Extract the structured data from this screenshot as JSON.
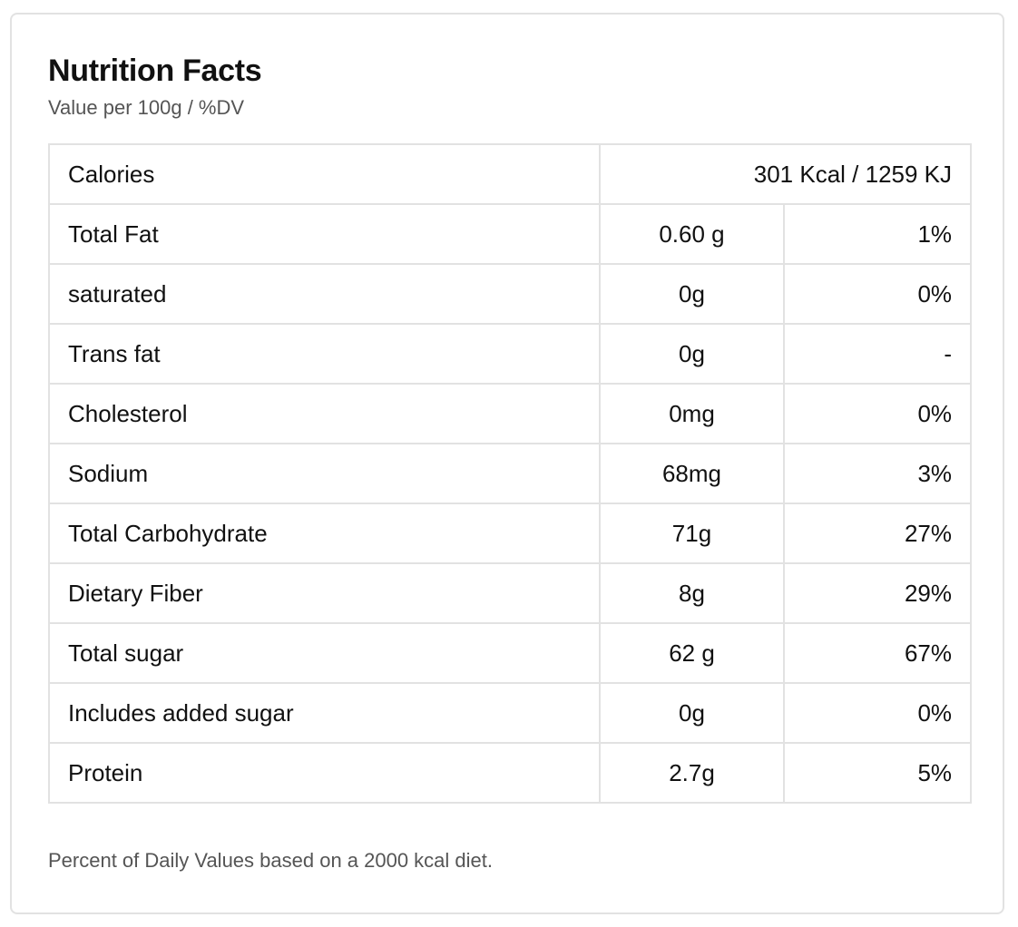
{
  "panel": {
    "title": "Nutrition Facts",
    "subtitle": "Value per 100g / %DV",
    "footnote": "Percent of Daily Values based on a 2000 kcal diet."
  },
  "calories": {
    "label": "Calories",
    "value": "301 Kcal / 1259 KJ"
  },
  "nutrients": [
    {
      "name": "Total Fat",
      "amount": "0.60 g",
      "dv": "1%"
    },
    {
      "name": "saturated",
      "amount": "0g",
      "dv": "0%"
    },
    {
      "name": "Trans fat",
      "amount": "0g",
      "dv": "-"
    },
    {
      "name": "Cholesterol",
      "amount": "0mg",
      "dv": "0%"
    },
    {
      "name": "Sodium",
      "amount": "68mg",
      "dv": "3%"
    },
    {
      "name": "Total Carbohydrate",
      "amount": "71g",
      "dv": "27%"
    },
    {
      "name": "Dietary Fiber",
      "amount": "8g",
      "dv": "29%"
    },
    {
      "name": "Total sugar",
      "amount": "62 g",
      "dv": "67%"
    },
    {
      "name": "Includes added sugar",
      "amount": "0g",
      "dv": "0%"
    },
    {
      "name": "Protein",
      "amount": "2.7g",
      "dv": "5%"
    }
  ],
  "colors": {
    "text": "#111111",
    "muted_text": "#555555",
    "border": "#e2e2e2",
    "background": "#ffffff"
  }
}
